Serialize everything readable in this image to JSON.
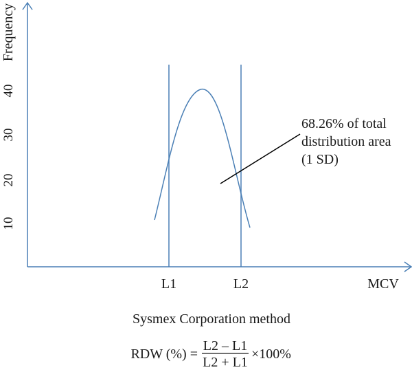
{
  "axes": {
    "y_label": "Frequency",
    "x_label": "MCV",
    "y_ticks": [
      "10",
      "20",
      "30",
      "40"
    ]
  },
  "markers": {
    "left": "L1",
    "right": "L2"
  },
  "annotation": {
    "lines": [
      "68.26% of total",
      "distribution area",
      "(1 SD)"
    ]
  },
  "caption": "Sysmex Corporation method",
  "formula": {
    "lhs": "RDW (%) =",
    "numerator": "L2 – L1",
    "denominator": "L2 + L1",
    "rhs": "×100%"
  },
  "colors": {
    "axis": "#4a7fb5",
    "curve": "#4a7fb5",
    "marker_lines": "#4a7fb5",
    "pointer": "#000000",
    "text": "#1a1a1a"
  }
}
